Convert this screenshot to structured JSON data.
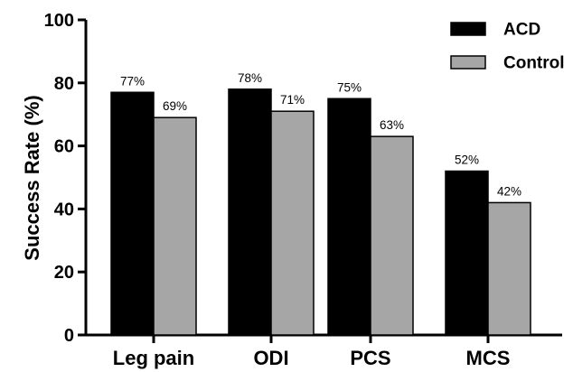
{
  "chart_data": {
    "type": "bar",
    "categories": [
      "Leg pain",
      "ODI",
      "PCS",
      "MCS"
    ],
    "series": [
      {
        "name": "ACD",
        "values": [
          77,
          78,
          75,
          52
        ],
        "labels": [
          "77%",
          "78%",
          "75%",
          "52%"
        ],
        "color": "#000000"
      },
      {
        "name": "Control",
        "values": [
          69,
          71,
          63,
          42
        ],
        "labels": [
          "69%",
          "71%",
          "63%",
          "42%"
        ],
        "color": "#a6a6a6"
      }
    ],
    "title": "",
    "xlabel": "",
    "ylabel": "Success Rate (%)",
    "ylim": [
      0,
      100
    ],
    "yticks": [
      0,
      20,
      40,
      60,
      80,
      100
    ],
    "grid": false,
    "legend": "top-right"
  }
}
